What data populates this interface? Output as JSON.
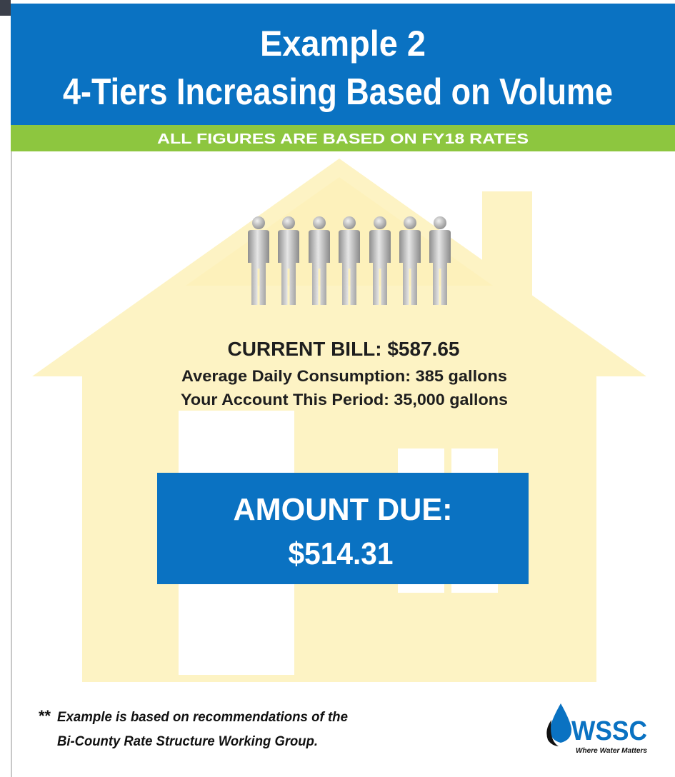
{
  "header": {
    "title_line1": "Example 2",
    "title_line2": "4-Tiers Increasing Based on Volume"
  },
  "banner": "ALL FIGURES ARE BASED ON FY18 RATES",
  "bill": {
    "current_bill": "CURRENT BILL:  $587.65",
    "daily_consumption": "Average Daily Consumption:  385 gallons",
    "account_period": "Your Account This Period:  35,000 gallons"
  },
  "amount_due": {
    "label": "AMOUNT DUE:",
    "value": "$514.31"
  },
  "footnote": {
    "marker": "**",
    "line1": "Example is based on recommendations of the",
    "line2": "Bi-County Rate Structure Working Group."
  },
  "logo": {
    "name": "WSSC",
    "tagline": "Where Water Matters"
  }
}
